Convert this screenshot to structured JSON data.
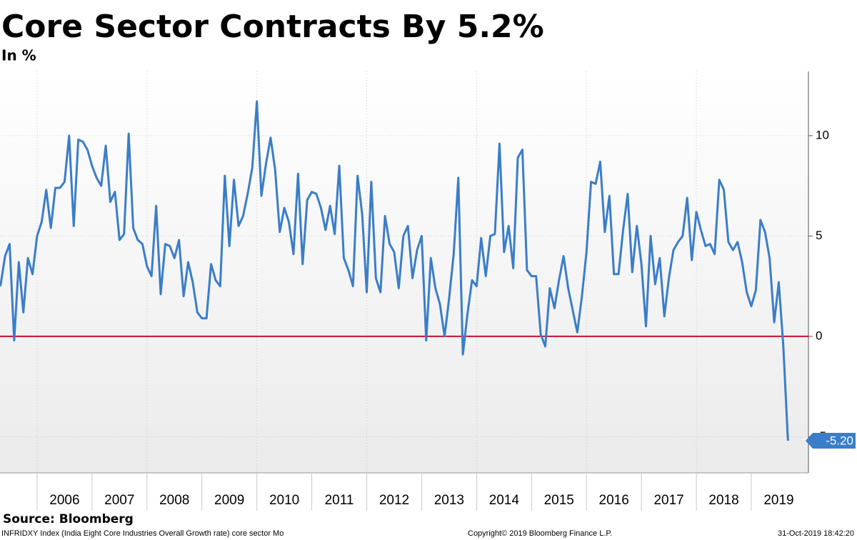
{
  "chart_data": {
    "type": "line",
    "title": "Core Sector Contracts By 5.2%",
    "subtitle": "In %",
    "source": "Source: Bloomberg",
    "footnote": "INFRIDXY Index (India Eight Core Industries Overall Growth rate) core sector  Mo",
    "copyright": "Copyright© 2019 Bloomberg Finance L.P.",
    "timestamp": "31-Oct-2019 18:42:20",
    "color": "#3a7dc9",
    "reference_line": {
      "value": 0,
      "color": "#c8102e"
    },
    "grid": true,
    "xlim": [
      2005.325,
      2020.04
    ],
    "xticks": [
      2006,
      2007,
      2008,
      2009,
      2010,
      2011,
      2012,
      2013,
      2014,
      2015,
      2016,
      2017,
      2018,
      2019
    ],
    "ylim": [
      -6.8,
      13.2
    ],
    "yticks": [
      -5,
      0,
      5,
      10
    ],
    "x": [
      2005.333,
      2005.417,
      2005.5,
      2005.583,
      2005.667,
      2005.75,
      2005.833,
      2005.917,
      2006.0,
      2006.083,
      2006.167,
      2006.25,
      2006.333,
      2006.417,
      2006.5,
      2006.583,
      2006.667,
      2006.75,
      2006.833,
      2006.917,
      2007.0,
      2007.083,
      2007.167,
      2007.25,
      2007.333,
      2007.417,
      2007.5,
      2007.583,
      2007.667,
      2007.75,
      2007.833,
      2007.917,
      2008.0,
      2008.083,
      2008.167,
      2008.25,
      2008.333,
      2008.417,
      2008.5,
      2008.583,
      2008.667,
      2008.75,
      2008.833,
      2008.917,
      2009.0,
      2009.083,
      2009.167,
      2009.25,
      2009.333,
      2009.417,
      2009.5,
      2009.583,
      2009.667,
      2009.75,
      2009.833,
      2009.917,
      2010.0,
      2010.083,
      2010.167,
      2010.25,
      2010.333,
      2010.417,
      2010.5,
      2010.583,
      2010.667,
      2010.75,
      2010.833,
      2010.917,
      2011.0,
      2011.083,
      2011.167,
      2011.25,
      2011.333,
      2011.417,
      2011.5,
      2011.583,
      2011.667,
      2011.75,
      2011.833,
      2011.917,
      2012.0,
      2012.083,
      2012.167,
      2012.25,
      2012.333,
      2012.417,
      2012.5,
      2012.583,
      2012.667,
      2012.75,
      2012.833,
      2012.917,
      2013.0,
      2013.083,
      2013.167,
      2013.25,
      2013.333,
      2013.417,
      2013.5,
      2013.583,
      2013.667,
      2013.75,
      2013.833,
      2013.917,
      2014.0,
      2014.083,
      2014.167,
      2014.25,
      2014.333,
      2014.417,
      2014.5,
      2014.583,
      2014.667,
      2014.75,
      2014.833,
      2014.917,
      2015.0,
      2015.083,
      2015.167,
      2015.25,
      2015.333,
      2015.417,
      2015.5,
      2015.583,
      2015.667,
      2015.75,
      2015.833,
      2015.917,
      2016.0,
      2016.083,
      2016.167,
      2016.25,
      2016.333,
      2016.417,
      2016.5,
      2016.583,
      2016.667,
      2016.75,
      2016.833,
      2016.917,
      2017.0,
      2017.083,
      2017.167,
      2017.25,
      2017.333,
      2017.417,
      2017.5,
      2017.583,
      2017.667,
      2017.75,
      2017.833,
      2017.917,
      2018.0,
      2018.083,
      2018.167,
      2018.25,
      2018.333,
      2018.417,
      2018.5,
      2018.583,
      2018.667,
      2018.75,
      2018.833,
      2018.917,
      2019.0,
      2019.083,
      2019.167,
      2019.25,
      2019.333,
      2019.417,
      2019.5,
      2019.583,
      2019.667
    ],
    "values": [
      2.5,
      4.0,
      4.6,
      -0.2,
      3.7,
      1.2,
      3.9,
      3.1,
      5.0,
      5.7,
      7.3,
      5.4,
      7.4,
      7.4,
      7.7,
      10.0,
      5.5,
      9.8,
      9.7,
      9.3,
      8.5,
      7.9,
      7.5,
      9.5,
      6.7,
      7.2,
      4.8,
      5.1,
      10.1,
      5.4,
      4.8,
      4.6,
      3.5,
      3.0,
      6.5,
      2.1,
      4.6,
      4.5,
      3.9,
      4.8,
      2.0,
      3.7,
      2.7,
      1.2,
      0.9,
      0.9,
      3.6,
      2.8,
      2.5,
      8.0,
      4.5,
      7.8,
      5.5,
      6.0,
      7.1,
      8.4,
      11.7,
      7.0,
      8.6,
      9.9,
      8.3,
      5.2,
      6.4,
      5.7,
      4.1,
      8.1,
      3.6,
      6.8,
      7.2,
      7.1,
      6.4,
      5.3,
      6.5,
      5.1,
      8.5,
      3.9,
      3.3,
      2.5,
      8.0,
      6.1,
      2.2,
      7.7,
      2.9,
      2.2,
      6.0,
      4.6,
      4.2,
      2.4,
      5.0,
      5.5,
      2.9,
      4.3,
      5.0,
      -0.2,
      3.9,
      2.4,
      1.6,
      0.0,
      1.9,
      4.1,
      7.9,
      -0.9,
      1.1,
      2.8,
      2.5,
      4.9,
      3.0,
      5.0,
      5.1,
      9.6,
      4.2,
      5.5,
      3.4,
      8.9,
      9.3,
      3.3,
      3.0,
      3.0,
      0.1,
      -0.5,
      2.4,
      1.4,
      2.8,
      4.0,
      2.4,
      1.3,
      0.2,
      2.0,
      4.2,
      7.7,
      7.6,
      8.7,
      5.2,
      7.0,
      3.1,
      3.1,
      5.3,
      7.1,
      3.2,
      5.5,
      3.6,
      0.5,
      5.0,
      2.6,
      3.9,
      1.0,
      2.9,
      4.3,
      4.7,
      5.0,
      6.9,
      3.8,
      6.2,
      5.3,
      4.5,
      4.6,
      4.1,
      7.8,
      7.3,
      4.7,
      4.3,
      4.7,
      3.7,
      2.2,
      1.5,
      2.3,
      5.8,
      5.2,
      3.9,
      0.7,
      2.7,
      -0.5,
      -5.2
    ],
    "value_labels": [
      null,
      null,
      null,
      null,
      null,
      null,
      null,
      null,
      null,
      null,
      null,
      null,
      null,
      null,
      null,
      null,
      null,
      null,
      null,
      null,
      null,
      null,
      null,
      null,
      null,
      null,
      null,
      null,
      null,
      null,
      null,
      null,
      null,
      null,
      null,
      null,
      null,
      null,
      null,
      null,
      null,
      null,
      null,
      null,
      null,
      null,
      null,
      null,
      null,
      null,
      null,
      null,
      null,
      null,
      null,
      null,
      null,
      null,
      null,
      null,
      null,
      null,
      null,
      null,
      null,
      null,
      null,
      null,
      null,
      null,
      null,
      null,
      null,
      null,
      null,
      null,
      null,
      null,
      null,
      null,
      null,
      null,
      null,
      null,
      null,
      null,
      null,
      null,
      null,
      null,
      null,
      null,
      null,
      null,
      null,
      null,
      null,
      null,
      null,
      null,
      null,
      null,
      null,
      null,
      null,
      null,
      null,
      null,
      null,
      null,
      null,
      null,
      null,
      null,
      null,
      null,
      null,
      null,
      null,
      null,
      null,
      null,
      null,
      null,
      null,
      null,
      null,
      null,
      null,
      null,
      null,
      null,
      null,
      null,
      null,
      null,
      null,
      null,
      null,
      null,
      null,
      null,
      null,
      null,
      null,
      null,
      null,
      null,
      null,
      null,
      null,
      null,
      null,
      null,
      null,
      null,
      null,
      null,
      null,
      null,
      null,
      null,
      null,
      null,
      null,
      null,
      null,
      null,
      null,
      null,
      null,
      null,
      "-5.20"
    ]
  }
}
